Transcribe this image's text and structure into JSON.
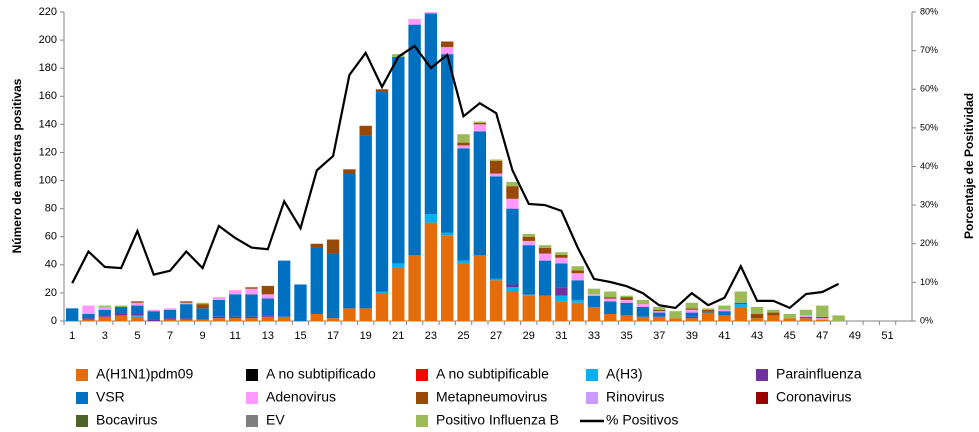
{
  "chart_data": {
    "type": "stacked-bar-line",
    "y_label": "Número de amostras positivas",
    "y2_label": "Porcentaje de Positividad",
    "categories": [
      1,
      null,
      3,
      null,
      5,
      null,
      7,
      null,
      9,
      null,
      11,
      null,
      13,
      null,
      15,
      null,
      17,
      null,
      19,
      null,
      21,
      null,
      23,
      null,
      25,
      null,
      27,
      null,
      29,
      null,
      31,
      null,
      33,
      null,
      35,
      null,
      37,
      null,
      39,
      null,
      41,
      null,
      43,
      null,
      45,
      null,
      47,
      null,
      49,
      null,
      51,
      null
    ],
    "ylim": [
      0,
      220
    ],
    "yticks": [
      0,
      20,
      40,
      60,
      80,
      100,
      120,
      140,
      160,
      180,
      200,
      220
    ],
    "y2lim": [
      0,
      80
    ],
    "y2ticks": [
      {
        "value": 0,
        "label": "0%"
      },
      {
        "value": 10,
        "label": "10%"
      },
      {
        "value": 20,
        "label": "20%"
      },
      {
        "value": 30,
        "label": "30%"
      },
      {
        "value": 40,
        "label": "40%"
      },
      {
        "value": 50,
        "label": "50%"
      },
      {
        "value": 60,
        "label": "60%"
      },
      {
        "value": 70,
        "label": "70%"
      },
      {
        "value": 80,
        "label": "80%"
      }
    ],
    "series": [
      {
        "name": "A(H1N1)pdm09",
        "color": "#e46c0a",
        "values": [
          0,
          1,
          3,
          4,
          3,
          0,
          1,
          1,
          1,
          2,
          2,
          2,
          3,
          3,
          0,
          5,
          2,
          9,
          9,
          20,
          38,
          47,
          70,
          61,
          41,
          47,
          29,
          21,
          18,
          18,
          14,
          13,
          10,
          5,
          4,
          3,
          3,
          2,
          2,
          6,
          4,
          10,
          2,
          4,
          2,
          2,
          1,
          0,
          0,
          0,
          0,
          0
        ]
      },
      {
        "name": "A no subtipificado",
        "color": "#000000",
        "values": [
          0,
          0,
          0,
          0,
          0,
          0,
          0,
          0,
          0,
          0,
          0,
          0,
          0,
          0,
          0,
          0,
          0,
          0,
          0,
          0,
          0,
          0,
          0,
          0,
          0,
          0,
          0,
          0,
          0,
          0,
          0,
          0,
          0,
          0,
          0,
          0,
          0,
          0,
          0,
          0,
          0,
          0,
          0,
          0,
          0,
          0,
          0,
          0,
          0,
          0,
          0,
          0
        ]
      },
      {
        "name": "A no subtipificable",
        "color": "#ff0000",
        "values": [
          0,
          0,
          0,
          0,
          0,
          0,
          0,
          0,
          0,
          0,
          0,
          0,
          0,
          0,
          0,
          0,
          0,
          0,
          0,
          0,
          0,
          0,
          0,
          0,
          0,
          0,
          0,
          0,
          0,
          0,
          0,
          0,
          0,
          0,
          0,
          0,
          0,
          0,
          0,
          0,
          0,
          0,
          0,
          0,
          0,
          0,
          0,
          0,
          0,
          0,
          0,
          0
        ]
      },
      {
        "name": "A(H3)",
        "color": "#00b0f0",
        "values": [
          0,
          0,
          0,
          0,
          1,
          0,
          0,
          0,
          0,
          0,
          0,
          0,
          0,
          0,
          0,
          0,
          0,
          0,
          0,
          1,
          3,
          0,
          6,
          2,
          2,
          0,
          1,
          3,
          1,
          0,
          4,
          2,
          0,
          0,
          0,
          0,
          0,
          0,
          0,
          0,
          0,
          2,
          0,
          0,
          0,
          0,
          0,
          0,
          0,
          0,
          0,
          0
        ]
      },
      {
        "name": "Parainfluenza",
        "color": "#7030a0",
        "values": [
          0,
          1,
          1,
          1,
          1,
          1,
          1,
          1,
          0,
          1,
          1,
          1,
          1,
          0,
          0,
          0,
          0,
          0,
          0,
          0,
          0,
          0,
          0,
          0,
          0,
          0,
          0,
          2,
          1,
          0,
          6,
          0,
          0,
          0,
          0,
          0,
          0,
          0,
          1,
          0,
          0,
          0,
          0,
          0,
          0,
          0,
          0,
          0,
          0,
          0,
          0,
          0
        ]
      },
      {
        "name": "VSR",
        "color": "#0070c0",
        "values": [
          9,
          3,
          4,
          5,
          6,
          6,
          6,
          10,
          8,
          12,
          16,
          16,
          12,
          40,
          26,
          47,
          46,
          96,
          123,
          142,
          147,
          164,
          143,
          127,
          80,
          88,
          73,
          54,
          34,
          25,
          17,
          14,
          8,
          9,
          9,
          7,
          3,
          0,
          3,
          1,
          3,
          1,
          0,
          0,
          0,
          1,
          0,
          0,
          0,
          0,
          0,
          0
        ]
      },
      {
        "name": "Adenovirus",
        "color": "#ff99ff",
        "values": [
          0,
          6,
          2,
          0,
          2,
          1,
          1,
          1,
          0,
          2,
          3,
          4,
          3,
          0,
          0,
          0,
          0,
          0,
          0,
          0,
          0,
          4,
          1,
          5,
          2,
          5,
          2,
          7,
          3,
          5,
          4,
          5,
          1,
          2,
          2,
          2,
          1,
          0,
          2,
          0,
          1,
          0,
          0,
          0,
          0,
          1,
          1,
          0,
          0,
          0,
          0,
          0
        ]
      },
      {
        "name": "Metapneumovirus",
        "color": "#984807",
        "values": [
          0,
          0,
          0,
          0,
          1,
          0,
          0,
          1,
          3,
          0,
          0,
          1,
          6,
          0,
          0,
          3,
          10,
          3,
          7,
          2,
          0,
          0,
          0,
          4,
          2,
          1,
          9,
          9,
          3,
          4,
          2,
          2,
          0,
          1,
          2,
          0,
          1,
          0,
          1,
          1,
          0,
          0,
          3,
          2,
          0,
          0,
          1,
          0,
          0,
          0,
          0,
          0
        ]
      },
      {
        "name": "Rinovirus",
        "color": "#cc99ff",
        "values": [
          0,
          0,
          0,
          0,
          0,
          0,
          0,
          0,
          0,
          0,
          0,
          0,
          0,
          0,
          0,
          0,
          0,
          0,
          0,
          0,
          0,
          0,
          0,
          0,
          0,
          0,
          0,
          0,
          0,
          0,
          0,
          0,
          0,
          0,
          0,
          0,
          0,
          0,
          0,
          0,
          0,
          0,
          0,
          0,
          0,
          0,
          0,
          0,
          0,
          0,
          0,
          0
        ]
      },
      {
        "name": "Coronavirus",
        "color": "#990000",
        "values": [
          0,
          0,
          0,
          0,
          0,
          0,
          0,
          0,
          0,
          0,
          0,
          0,
          0,
          0,
          0,
          0,
          0,
          0,
          0,
          0,
          0,
          0,
          0,
          0,
          0,
          0,
          0,
          0,
          0,
          0,
          0,
          0,
          0,
          0,
          0,
          0,
          0,
          0,
          0,
          0,
          0,
          0,
          0,
          0,
          0,
          0,
          0,
          0,
          0,
          0,
          0,
          0
        ]
      },
      {
        "name": "Bocavirus",
        "color": "#4f6228",
        "values": [
          0,
          0,
          0,
          0,
          0,
          0,
          0,
          0,
          0,
          0,
          0,
          0,
          0,
          0,
          0,
          0,
          0,
          0,
          0,
          0,
          0,
          0,
          0,
          0,
          0,
          0,
          0,
          0,
          0,
          0,
          0,
          0,
          0,
          0,
          0,
          0,
          0,
          0,
          0,
          0,
          0,
          0,
          0,
          0,
          0,
          0,
          0,
          0,
          0,
          0,
          0,
          0
        ]
      },
      {
        "name": "EV",
        "color": "#7f7f7f",
        "values": [
          0,
          0,
          0,
          0,
          0,
          0,
          0,
          0,
          0,
          0,
          0,
          0,
          0,
          0,
          0,
          0,
          0,
          0,
          0,
          0,
          0,
          0,
          0,
          0,
          0,
          0,
          0,
          0,
          0,
          0,
          0,
          0,
          0,
          0,
          0,
          0,
          0,
          0,
          0,
          0,
          0,
          0,
          0,
          0,
          0,
          0,
          0,
          0,
          0,
          0,
          0,
          0
        ]
      },
      {
        "name": "Positivo Influenza  B",
        "color": "#9bbb59",
        "values": [
          0,
          0,
          1,
          1,
          0,
          0,
          0,
          0,
          1,
          0,
          0,
          0,
          0,
          0,
          0,
          0,
          0,
          0,
          0,
          0,
          2,
          0,
          0,
          0,
          6,
          1,
          1,
          3,
          2,
          2,
          2,
          3,
          4,
          4,
          1,
          3,
          2,
          5,
          4,
          1,
          3,
          8,
          5,
          2,
          3,
          4,
          8,
          4,
          0,
          0,
          0,
          0
        ]
      },
      {
        "name": "% Positivos",
        "color": "#000000",
        "type": "line",
        "axis": "y2",
        "values": [
          9.8,
          18,
          14,
          13.7,
          23.3,
          12,
          13,
          18,
          13.7,
          24.6,
          21.5,
          19,
          18.6,
          31,
          24,
          39,
          42.7,
          63.7,
          69.4,
          60.6,
          68.4,
          71.2,
          65.5,
          68.9,
          53,
          56.4,
          53.8,
          39,
          30.3,
          30,
          28.5,
          19,
          10.9,
          10.1,
          9,
          7.2,
          4.1,
          3.4,
          7.2,
          4.1,
          6,
          14.2,
          5.2,
          5.2,
          3.4,
          7,
          7.5,
          9.6,
          null,
          null,
          null,
          null
        ]
      }
    ]
  }
}
